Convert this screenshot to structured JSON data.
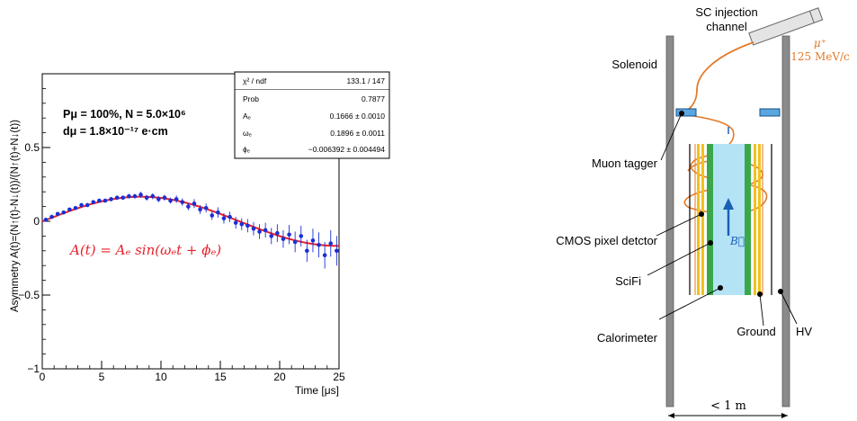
{
  "chart_data": {
    "type": "scatter",
    "xlabel": "Time [μs]",
    "ylabel": "Asymmetry A(t)=(N↑(t)-N↓(t))/(N↑(t)+N↓(t))",
    "xlim": [
      0,
      25
    ],
    "ylim": [
      -1,
      1
    ],
    "x_ticks": [
      "0",
      "5",
      "10",
      "15",
      "20",
      "25"
    ],
    "y_ticks": [
      "−1",
      "−0.5",
      "0",
      "0.5"
    ],
    "annotations": {
      "line1": "Pμ = 100%,  N = 5.0×10⁶",
      "line2": "dμ = 1.8×10⁻¹⁷ e·cm",
      "formula": "A(t) = Aₑ sin(ωₑt + ϕₑ)"
    },
    "stats_box": [
      {
        "label": "χ² / ndf",
        "value": "133.1 / 147"
      },
      {
        "label": "Prob",
        "value": "0.7877"
      },
      {
        "label": "Aₑ",
        "value": "0.1666 ± 0.0010"
      },
      {
        "label": "ωₑ",
        "value": "0.1896 ± 0.0011"
      },
      {
        "label": "ϕₑ",
        "value": "−0.006392 ± 0.004494"
      }
    ],
    "fit": {
      "name": "A(t) = Aₑ sin(ωₑt + ϕₑ)",
      "A": 0.1666,
      "omega": 0.1896,
      "phi": -0.006392,
      "color": "#e8202a"
    },
    "data_color": "#1a2fd6",
    "series": [
      {
        "x": [
          0.3,
          0.8,
          1.3,
          1.8,
          2.3,
          2.8,
          3.3,
          3.8,
          4.3,
          4.8,
          5.3,
          5.8,
          6.3,
          6.8,
          7.3,
          7.8,
          8.3,
          8.8,
          9.3,
          9.8,
          10.3,
          10.8,
          11.3,
          11.8,
          12.3,
          12.8,
          13.3,
          13.8,
          14.3,
          14.8,
          15.3,
          15.8,
          16.3,
          16.8,
          17.3,
          17.8,
          18.3,
          18.8,
          19.3,
          19.8,
          20.3,
          20.8,
          21.3,
          21.8,
          22.3,
          22.8,
          23.3,
          23.8,
          24.3,
          24.8
        ],
        "y": [
          0.01,
          0.03,
          0.05,
          0.06,
          0.08,
          0.09,
          0.11,
          0.11,
          0.13,
          0.14,
          0.14,
          0.15,
          0.16,
          0.16,
          0.17,
          0.17,
          0.18,
          0.16,
          0.17,
          0.15,
          0.16,
          0.14,
          0.15,
          0.13,
          0.1,
          0.12,
          0.08,
          0.09,
          0.04,
          0.06,
          0.02,
          0.03,
          -0.01,
          -0.02,
          -0.03,
          -0.05,
          -0.07,
          -0.06,
          -0.1,
          -0.08,
          -0.12,
          -0.09,
          -0.14,
          -0.1,
          -0.2,
          -0.13,
          -0.16,
          -0.23,
          -0.15,
          -0.2
        ],
        "err": [
          0.01,
          0.01,
          0.01,
          0.01,
          0.01,
          0.01,
          0.01,
          0.01,
          0.01,
          0.01,
          0.01,
          0.015,
          0.015,
          0.015,
          0.015,
          0.015,
          0.02,
          0.02,
          0.02,
          0.02,
          0.02,
          0.02,
          0.025,
          0.025,
          0.025,
          0.03,
          0.03,
          0.03,
          0.03,
          0.035,
          0.035,
          0.035,
          0.04,
          0.04,
          0.045,
          0.045,
          0.05,
          0.05,
          0.055,
          0.06,
          0.06,
          0.065,
          0.07,
          0.07,
          0.075,
          0.08,
          0.085,
          0.09,
          0.09,
          0.1
        ]
      }
    ],
    "grid": false
  },
  "diagram": {
    "labels": {
      "injection": [
        "SC injection",
        "channel"
      ],
      "muon_momentum": [
        "μ⁺",
        "125 MeV/c"
      ],
      "solenoid": "Solenoid",
      "tagger": "Muon tagger",
      "cmos": "CMOS pixel detctor",
      "scifi": "SciFi",
      "calorimeter": "Calorimeter",
      "ground": "Ground",
      "hv": "HV",
      "bfield": "B⃗",
      "width": "< 1 m"
    },
    "colors": {
      "wall": "#8a8a8a",
      "orbit": "#e27a2a",
      "tagger": "#5aa7e0",
      "core": "#b3e3f5",
      "green": "#3aa84a",
      "yellow": "#f2c21d",
      "arrow": "#1a5fb4"
    }
  }
}
